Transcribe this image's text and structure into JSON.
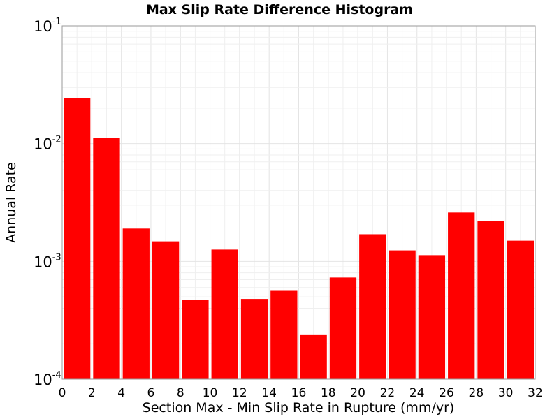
{
  "chart_data": {
    "type": "bar",
    "title": "Max Slip Rate Difference Histogram",
    "xlabel": "Section Max - Min Slip Rate in Rupture (mm/yr)",
    "ylabel": "Annual Rate",
    "y_scale": "log",
    "ylim": [
      0.0001,
      0.1
    ],
    "xlim": [
      0,
      32
    ],
    "bar_color": "#ff0000",
    "grid": true,
    "x_ticks": [
      "0",
      "2",
      "4",
      "6",
      "8",
      "10",
      "12",
      "14",
      "16",
      "18",
      "20",
      "22",
      "24",
      "26",
      "28",
      "30",
      "32"
    ],
    "y_ticks": [
      {
        "base": "10",
        "exp": "-4"
      },
      {
        "base": "10",
        "exp": "-3"
      },
      {
        "base": "10",
        "exp": "-2"
      },
      {
        "base": "10",
        "exp": "-1"
      }
    ],
    "bins": [
      {
        "start": 0,
        "end": 2,
        "value": 0.0245
      },
      {
        "start": 2,
        "end": 4,
        "value": 0.0112
      },
      {
        "start": 4,
        "end": 6,
        "value": 0.0019
      },
      {
        "start": 6,
        "end": 8,
        "value": 0.00148
      },
      {
        "start": 8,
        "end": 10,
        "value": 0.00047
      },
      {
        "start": 10,
        "end": 12,
        "value": 0.00126
      },
      {
        "start": 12,
        "end": 14,
        "value": 0.00048
      },
      {
        "start": 14,
        "end": 16,
        "value": 0.00057
      },
      {
        "start": 16,
        "end": 18,
        "value": 0.00024
      },
      {
        "start": 18,
        "end": 20,
        "value": 0.00073
      },
      {
        "start": 20,
        "end": 22,
        "value": 0.0017
      },
      {
        "start": 22,
        "end": 24,
        "value": 0.00124
      },
      {
        "start": 24,
        "end": 26,
        "value": 0.00113
      },
      {
        "start": 26,
        "end": 28,
        "value": 0.0026
      },
      {
        "start": 28,
        "end": 30,
        "value": 0.0022
      },
      {
        "start": 30,
        "end": 32,
        "value": 0.0015
      }
    ]
  }
}
